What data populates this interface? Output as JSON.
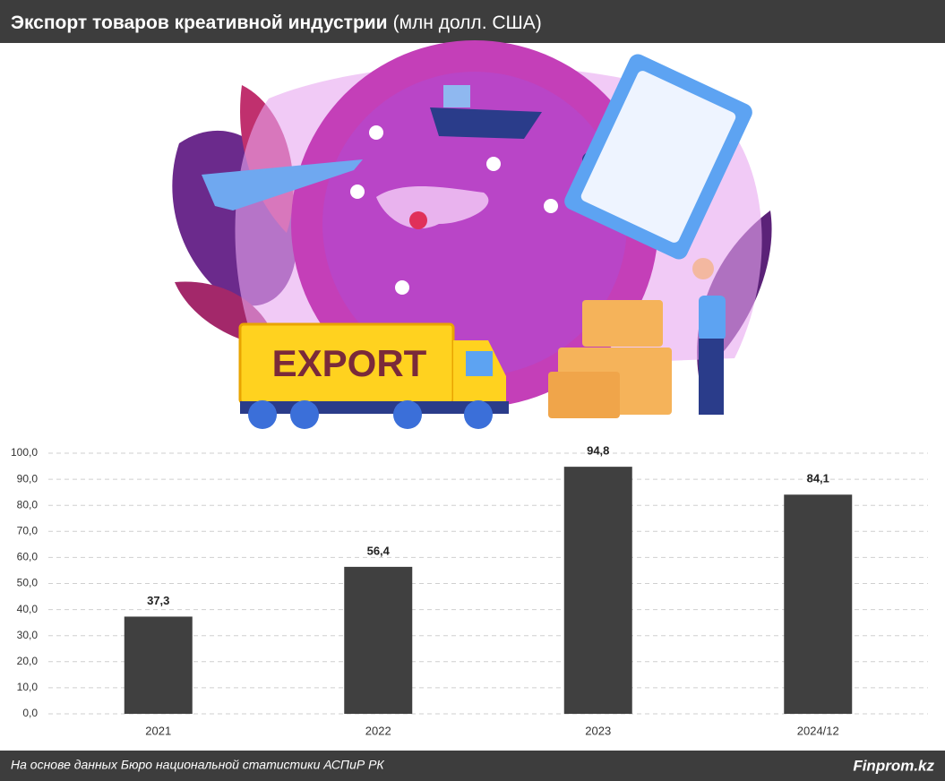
{
  "chart_data": {
    "type": "bar",
    "title": "Экспорт товаров креативной индустрии",
    "subtitle": "(млн долл. США)",
    "illustration_text": "EXPORT",
    "categories": [
      "2021",
      "2022",
      "2023",
      "2024/12"
    ],
    "values": [
      37.3,
      56.4,
      94.8,
      84.1
    ],
    "value_labels": [
      "37,3",
      "56,4",
      "94,8",
      "84,1"
    ],
    "color": "#404040",
    "ylim": [
      0,
      100
    ],
    "yticks": [
      {
        "value": 0,
        "label": "0,0"
      },
      {
        "value": 10,
        "label": "10,0"
      },
      {
        "value": 20,
        "label": "20,0"
      },
      {
        "value": 30,
        "label": "30,0"
      },
      {
        "value": 40,
        "label": "40,0"
      },
      {
        "value": 50,
        "label": "50,0"
      },
      {
        "value": 60,
        "label": "60,0"
      },
      {
        "value": 70,
        "label": "70,0"
      },
      {
        "value": 80,
        "label": "80,0"
      },
      {
        "value": 90,
        "label": "90,0"
      },
      {
        "value": 100,
        "label": "100,0"
      }
    ],
    "grid": true,
    "source": "На основе данных Бюро национальной статистики АСПиР РК",
    "brand": "Finprom.kz"
  }
}
